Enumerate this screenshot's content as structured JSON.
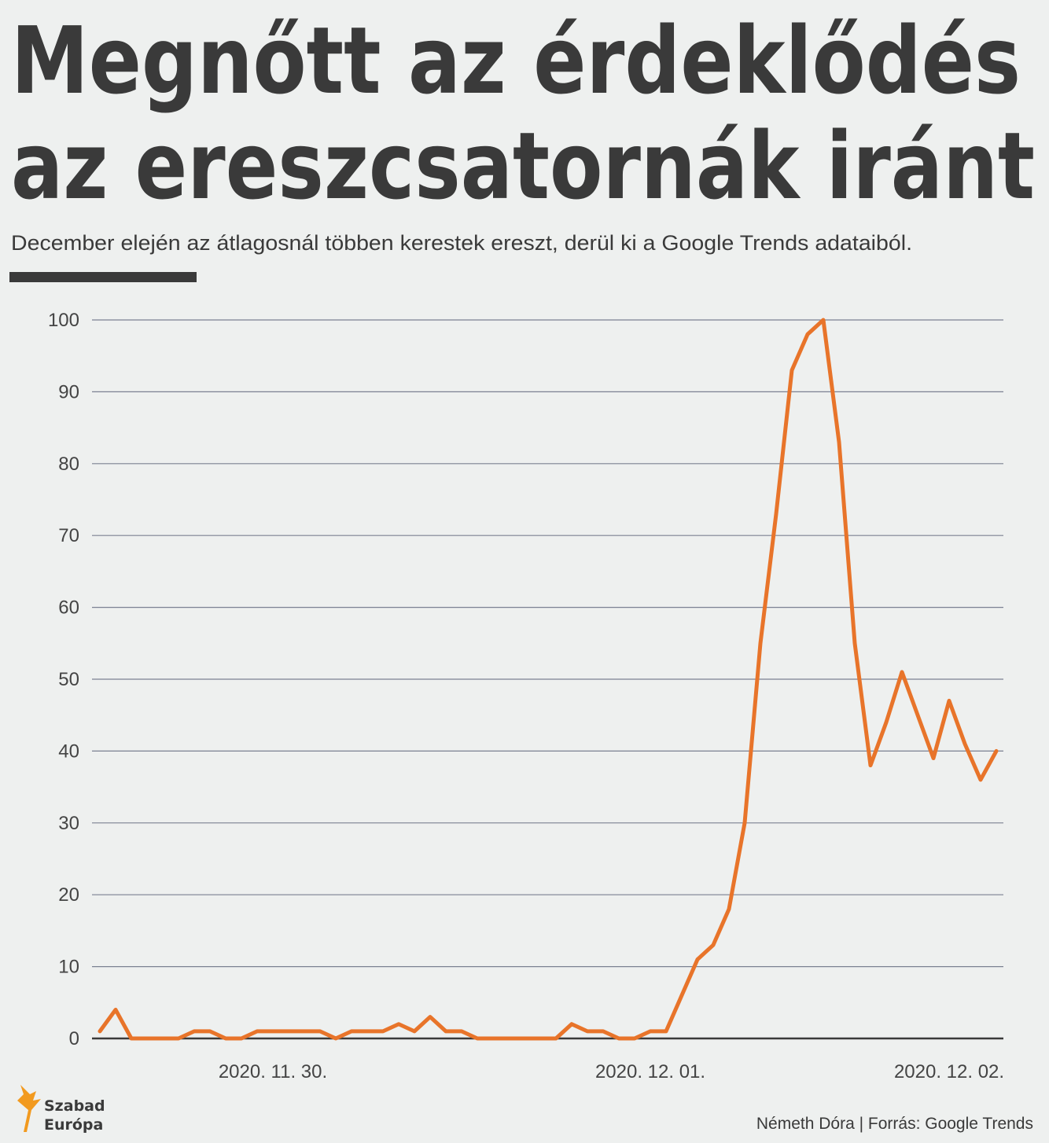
{
  "chart_data": {
    "type": "line",
    "title": [
      "Megnőtt az érdeklődés",
      "az ereszcsatornák iránt"
    ],
    "subtitle": "December elején az átlagosnál többen kerestek ereszt, derül ki a Google Trends adataiból.",
    "categories": [
      null,
      null,
      null,
      null,
      null,
      null,
      null,
      null,
      null,
      null,
      null,
      "2020. 11. 30.",
      null,
      null,
      null,
      null,
      null,
      null,
      null,
      null,
      null,
      null,
      null,
      null,
      null,
      null,
      null,
      null,
      null,
      null,
      null,
      null,
      null,
      null,
      null,
      "2020. 12. 01.",
      null,
      null,
      null,
      null,
      null,
      null,
      null,
      null,
      null,
      null,
      null,
      null,
      null,
      null,
      null,
      null,
      null,
      null,
      "2020. 12. 02.",
      null,
      null,
      null
    ],
    "series": [
      {
        "color": "#e8742a",
        "values": [
          1,
          4,
          0,
          0,
          0,
          0,
          1,
          1,
          0,
          0,
          1,
          1,
          1,
          1,
          1,
          0,
          1,
          1,
          1,
          2,
          1,
          3,
          1,
          1,
          0,
          0,
          0,
          0,
          0,
          0,
          2,
          1,
          1,
          0,
          0,
          1,
          1,
          6,
          11,
          13,
          18,
          30,
          55,
          73,
          93,
          98,
          100,
          83,
          55,
          38,
          44,
          51,
          45,
          39,
          47,
          41,
          36,
          40
        ]
      }
    ],
    "ylim": [
      0,
      100
    ],
    "yticks": [
      0,
      10,
      20,
      30,
      40,
      50,
      60,
      70,
      80,
      90,
      100
    ],
    "grid": true,
    "logo": [
      "Szabad",
      "Európa"
    ],
    "credit": "Németh Dóra | Forrás: Google Trends"
  }
}
